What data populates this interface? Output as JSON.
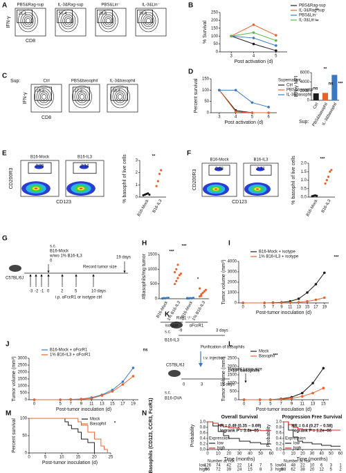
{
  "chart_data": [
    {
      "panel": "B",
      "type": "line",
      "xlabel": "Post activation (d)",
      "ylabel": "% Survival",
      "x": [
        3,
        4,
        5
      ],
      "xlim": [
        2.5,
        5.5
      ],
      "xticks": [
        3,
        4,
        5
      ],
      "ylim": [
        0,
        250
      ],
      "yticks": [
        0,
        50,
        100,
        150,
        200,
        250
      ],
      "series": [
        {
          "name": "PBS&Rag-sup",
          "color": "#1a1a1a",
          "values": [
            100,
            50,
            8
          ]
        },
        {
          "name": "IL-3&Rag-sup",
          "color": "#e8622c",
          "values": [
            100,
            172,
            105
          ]
        },
        {
          "name": "PBS&Lin⁻",
          "color": "#3a78c2",
          "values": [
            100,
            88,
            40
          ]
        },
        {
          "name": "IL-3&Lin⁻",
          "color": "#5cb545",
          "values": [
            100,
            122,
            72
          ]
        }
      ],
      "annotations": [
        "**",
        "**"
      ]
    },
    {
      "type": "bar",
      "ylabel": "IFN-γ MFI",
      "xlabel": "Sup:",
      "categories": [
        "Ctrl",
        "PBS&basophil",
        "IL-3&basophil"
      ],
      "values": [
        1500,
        1600,
        5500
      ],
      "colors": [
        "#1a1a1a",
        "#e8622c",
        "#3a78c2"
      ],
      "ylim": [
        0,
        6000
      ],
      "yticks": [
        0,
        2000,
        4000,
        6000
      ],
      "annotations": [
        "ns",
        "**"
      ]
    },
    {
      "panel": "D",
      "type": "line",
      "xlabel": "Post activation (d)",
      "ylabel": "Percent survival",
      "legend_title": "Supernatant",
      "x": [
        3,
        4,
        5,
        6
      ],
      "xlim": [
        2.5,
        6.5
      ],
      "xticks": [
        3,
        4,
        5,
        6
      ],
      "ylim": [
        0,
        150
      ],
      "yticks": [
        0,
        50,
        100,
        150
      ],
      "series": [
        {
          "name": "Ctrl",
          "color": "#1a1a1a",
          "values": [
            100,
            10,
            0,
            null
          ]
        },
        {
          "name": "PBS&basophil",
          "color": "#e8622c",
          "values": [
            100,
            5,
            0,
            0
          ]
        },
        {
          "name": "IL-3&basophil",
          "color": "#3a78c2",
          "values": [
            100,
            100,
            45,
            25
          ]
        }
      ],
      "annotations": [
        "ns",
        "***"
      ]
    },
    {
      "type": "strip",
      "ylabel": "% basophil of live cells",
      "categories": [
        "B16-Mock",
        "B16-IL3"
      ],
      "points": [
        [
          0.15,
          0.2,
          0.25,
          0.3,
          0.2
        ],
        [
          0.9,
          1.3,
          1.9,
          2.2
        ]
      ],
      "colors": [
        "#1a1a1a",
        "#e8622c"
      ],
      "ylim": [
        0,
        3
      ],
      "yticks": [
        0,
        1,
        2,
        3
      ],
      "annotations": [
        "**"
      ]
    },
    {
      "type": "strip",
      "ylabel": "% basophil of live cells",
      "categories": [
        "B16-Mock",
        "B16-IL3"
      ],
      "points": [
        [
          0.05,
          0.08,
          0.1,
          0.07
        ],
        [
          0.8,
          1.0,
          1.2,
          1.5,
          1.6
        ]
      ],
      "colors": [
        "#1a1a1a",
        "#e8622c"
      ],
      "ylim": [
        0,
        2
      ],
      "yticks": [
        {
          "value": 0,
          "label": "0.0"
        },
        0.5,
        {
          "value": 1,
          "label": "1.0"
        },
        1.5,
        {
          "value": 2,
          "label": "2.0"
        }
      ],
      "annotations": [
        "***"
      ]
    },
    {
      "panel": "H",
      "type": "strip",
      "ylabel": "#Basophils/mg tumor",
      "categories": [
        "B16-Mock",
        "1% B16-IL3",
        "B16-Mock",
        "1% B16-IL3"
      ],
      "groups": [
        "isotype",
        "αFcεR1"
      ],
      "points": [
        [
          10,
          20,
          15,
          25,
          30,
          10,
          20
        ],
        [
          500,
          600,
          700,
          800,
          850,
          900,
          1000,
          1150
        ],
        [
          5,
          10,
          20,
          15,
          30,
          25
        ],
        [
          80,
          150,
          200,
          250,
          300,
          350,
          100
        ]
      ],
      "colors": [
        "#3a78c2",
        "#e8622c",
        "#3a78c2",
        "#e8622c"
      ],
      "ylim": [
        0,
        1500
      ],
      "yticks": [
        0,
        500,
        1000,
        1500
      ],
      "annotations": [
        "***",
        "***",
        "*"
      ]
    },
    {
      "panel": "I",
      "type": "line",
      "xlabel": "Post-tumor inoculation (d)",
      "ylabel": "Tumor volume (mm³)",
      "x": [
        0,
        5,
        7,
        9,
        11,
        13,
        15,
        17,
        19
      ],
      "xlim": [
        -1,
        20
      ],
      "xticks": [
        0,
        5,
        7,
        9,
        11,
        13,
        15,
        17,
        19
      ],
      "ylim": [
        0,
        4000
      ],
      "yticks": [
        0,
        1000,
        2000,
        3000,
        4000
      ],
      "series": [
        {
          "name": "B16-Mock + isotype",
          "color": "#1a1a1a",
          "values": [
            0,
            0,
            20,
            50,
            150,
            400,
            1000,
            1800,
            2900
          ]
        },
        {
          "name": "1% B16-IL3 + isotype",
          "color": "#e8622c",
          "values": [
            0,
            0,
            0,
            10,
            30,
            60,
            150,
            300,
            500
          ]
        }
      ],
      "annotations": [
        "***"
      ]
    },
    {
      "panel": "J",
      "type": "line",
      "xlabel": "Post-tumor inoculation (d)",
      "ylabel": "Tumor volume (mm³)",
      "x": [
        0,
        5,
        7,
        9,
        11,
        13,
        15,
        17,
        19
      ],
      "xlim": [
        -1,
        20
      ],
      "xticks": [
        0,
        5,
        7,
        9,
        11,
        13,
        15,
        17,
        19
      ],
      "ylim": [
        0,
        3000
      ],
      "yticks": [
        0,
        500,
        1000,
        1500,
        2000,
        2500,
        3000
      ],
      "series": [
        {
          "name": "B16-Mock + αFcεR1",
          "color": "#3a78c2",
          "values": [
            0,
            0,
            20,
            50,
            150,
            350,
            700,
            1300,
            2300
          ]
        },
        {
          "name": "1% B16-IL3 + αFcεR1",
          "color": "#e8622c",
          "values": [
            0,
            0,
            20,
            40,
            100,
            300,
            600,
            1100,
            1700
          ]
        }
      ],
      "annotations": [
        "ns"
      ]
    },
    {
      "panel": "L",
      "type": "line",
      "xlabel": "Post-tumor inoculation (d)",
      "ylabel": "Tumor volume (mm³)",
      "x": [
        0,
        3,
        5,
        7,
        9,
        11,
        13,
        15
      ],
      "xlim": [
        -1,
        16
      ],
      "xticks": [
        0,
        3,
        5,
        7,
        9,
        11,
        13,
        15
      ],
      "ylim": [
        0,
        2500
      ],
      "yticks": [
        0,
        500,
        1000,
        1500,
        2000,
        2500
      ],
      "series": [
        {
          "name": "Mock",
          "color": "#1a1a1a",
          "values": [
            0,
            0,
            0,
            50,
            150,
            400,
            1000,
            1900
          ]
        },
        {
          "name": "Basophil",
          "color": "#e8622c",
          "values": [
            0,
            0,
            0,
            30,
            80,
            200,
            400,
            700
          ]
        }
      ],
      "annotations": [
        "***",
        "1×10⁶ basophils"
      ]
    },
    {
      "panel": "M",
      "type": "step",
      "xlabel": "Post-tumor inoculation (d)",
      "ylabel": "Percent survival",
      "xlim": [
        0,
        25
      ],
      "xticks": [
        0,
        5,
        10,
        15,
        20,
        25
      ],
      "ylim": [
        0,
        100
      ],
      "yticks": [
        0,
        50,
        100
      ],
      "series": [
        {
          "name": "Mock",
          "color": "#1a1a1a",
          "x": [
            0,
            11,
            12,
            13,
            15,
            16,
            18,
            20
          ],
          "values": [
            100,
            90,
            80,
            70,
            60,
            40,
            30,
            0
          ]
        },
        {
          "name": "Basophil",
          "color": "#e8622c",
          "x": [
            0,
            15,
            16,
            18,
            20,
            22,
            23,
            24
          ],
          "values": [
            100,
            90,
            80,
            60,
            40,
            20,
            10,
            0
          ]
        }
      ],
      "annotations": [
        "*"
      ]
    },
    {
      "type": "km",
      "title": "Overall Survival",
      "xlabel": "Time (months)",
      "ylabel": "Probability",
      "legend_title": "Expression",
      "xlim": [
        0,
        60
      ],
      "xticks": [
        0,
        10,
        20,
        30,
        40,
        50,
        60
      ],
      "ylim": [
        0,
        1
      ],
      "yticks": [
        {
          "value": 0,
          "label": "0.0"
        },
        0.2,
        0.4,
        0.6,
        0.8,
        {
          "value": 1,
          "label": "1.0"
        }
      ],
      "series": [
        {
          "name": "low",
          "color": "#1a1a1a",
          "x": [
            0,
            5,
            10,
            15,
            20,
            30,
            40,
            50,
            60
          ],
          "values": [
            1,
            0.85,
            0.65,
            0.5,
            0.4,
            0.3,
            0.25,
            0.2,
            0.2
          ]
        },
        {
          "name": "high",
          "color": "#e0201b",
          "x": [
            0,
            5,
            10,
            15,
            20,
            30,
            40,
            50,
            60
          ],
          "values": [
            1,
            0.95,
            0.88,
            0.82,
            0.78,
            0.72,
            0.7,
            0.68,
            0.68
          ]
        }
      ],
      "annotations": [
        "HR = 0.49 (0.35 – 0.69)",
        "logrank P = 3.4e−05"
      ],
      "risk_title": "Number at risk",
      "risk": [
        {
          "name": "low",
          "values": [
            126,
            74,
            42,
            22,
            14,
            7,
            5
          ]
        },
        {
          "name": "high",
          "values": [
            96,
            72,
            39,
            24,
            15,
            8,
            3
          ]
        }
      ]
    },
    {
      "type": "km",
      "title": "Progression Free Survival",
      "xlabel": "Time (months)",
      "ylabel": "Probability",
      "legend_title": "Expression",
      "xlim": [
        0,
        60
      ],
      "xticks": [
        0,
        10,
        20,
        30,
        40,
        50,
        60
      ],
      "ylim": [
        0,
        1
      ],
      "yticks": [
        {
          "value": 0,
          "label": "0.0"
        },
        0.2,
        0.4,
        0.6,
        0.8,
        {
          "value": 1,
          "label": "1.0"
        }
      ],
      "series": [
        {
          "name": "low",
          "color": "#1a1a1a",
          "x": [
            0,
            5,
            10,
            15,
            20,
            30,
            40,
            50,
            60
          ],
          "values": [
            1,
            0.7,
            0.45,
            0.3,
            0.25,
            0.2,
            0.15,
            0.12,
            0.12
          ]
        },
        {
          "name": "high",
          "color": "#e0201b",
          "x": [
            0,
            5,
            10,
            15,
            20,
            30,
            40,
            50,
            60
          ],
          "values": [
            1,
            0.9,
            0.8,
            0.75,
            0.72,
            0.7,
            0.7,
            0.7,
            0.7
          ]
        }
      ],
      "annotations": [
        "HR = 0.4 (0.27 – 0.58)",
        "logrank P = 1.2e−06"
      ],
      "risk_title": "Number at risk",
      "risk": [
        {
          "name": "low",
          "values": [
            94,
            48,
            22,
            10,
            6,
            3,
            1
          ]
        },
        {
          "name": "high",
          "values": [
            88,
            62,
            38,
            20,
            12,
            5,
            2
          ]
        }
      ]
    }
  ],
  "figure": {
    "A": {
      "label": "A",
      "ylabel": "IFN-γ",
      "xlabel": "CD8",
      "plots": [
        {
          "title": "PBS&Rag-sup",
          "gate": 21.1
        },
        {
          "title": "IL-3&Rag-sup",
          "gate": 50.4
        },
        {
          "title": "PBS&Lin⁻",
          "gate": 28.5
        },
        {
          "title": "IL-3&Lin⁻",
          "gate": 39.6
        }
      ]
    },
    "C": {
      "label": "C",
      "row_label": "Sup:",
      "ylabel": "IFN-γ",
      "xlabel": "CD8",
      "plots": [
        {
          "title": "Ctrl",
          "gate": 16.2
        },
        {
          "title": "PBS&basophil",
          "gate": 17.2
        },
        {
          "title": "IL-3&basophil",
          "gate": 38.4
        }
      ]
    },
    "E": {
      "label": "E",
      "ylabel": "CD200R3",
      "xlabel": "CD123",
      "plots": [
        {
          "title": "B16-Mock",
          "gate": 0.26
        },
        {
          "title": "B16-IL3",
          "gate": 2.14
        }
      ]
    },
    "F": {
      "label": "F",
      "ylabel": "CD200R3",
      "xlabel": "CD123",
      "plots": [
        {
          "title": "B16-Mock",
          "gate": 0.08
        },
        {
          "title": "B16-IL3",
          "gate": 2.31
        }
      ]
    },
    "G": {
      "label": "G",
      "texts": [
        "C57BL/6J",
        "s.c.",
        "B16-Mock",
        "w/wo 1% B16-IL3",
        "0",
        "Record tumor size",
        "19 days",
        "-3",
        "-2",
        "-1",
        "0",
        "2",
        "5",
        "10 days",
        "i.p. αFcεR1 or isotype ctrl"
      ]
    },
    "K": {
      "label": "K",
      "texts": [
        "Rag1⁻/⁻",
        "s.c.",
        "B16-IL3",
        "-9",
        "3 days",
        "Purification of basophils",
        "C57BL/6J",
        "i.v. injection",
        "0",
        "3",
        "15 days",
        "s.c.",
        "B16-OVA",
        "Record tumor size"
      ]
    },
    "N": {
      "label": "N",
      "ylabel": "Basophils (CD123, CCR3, FcεR1)"
    }
  }
}
